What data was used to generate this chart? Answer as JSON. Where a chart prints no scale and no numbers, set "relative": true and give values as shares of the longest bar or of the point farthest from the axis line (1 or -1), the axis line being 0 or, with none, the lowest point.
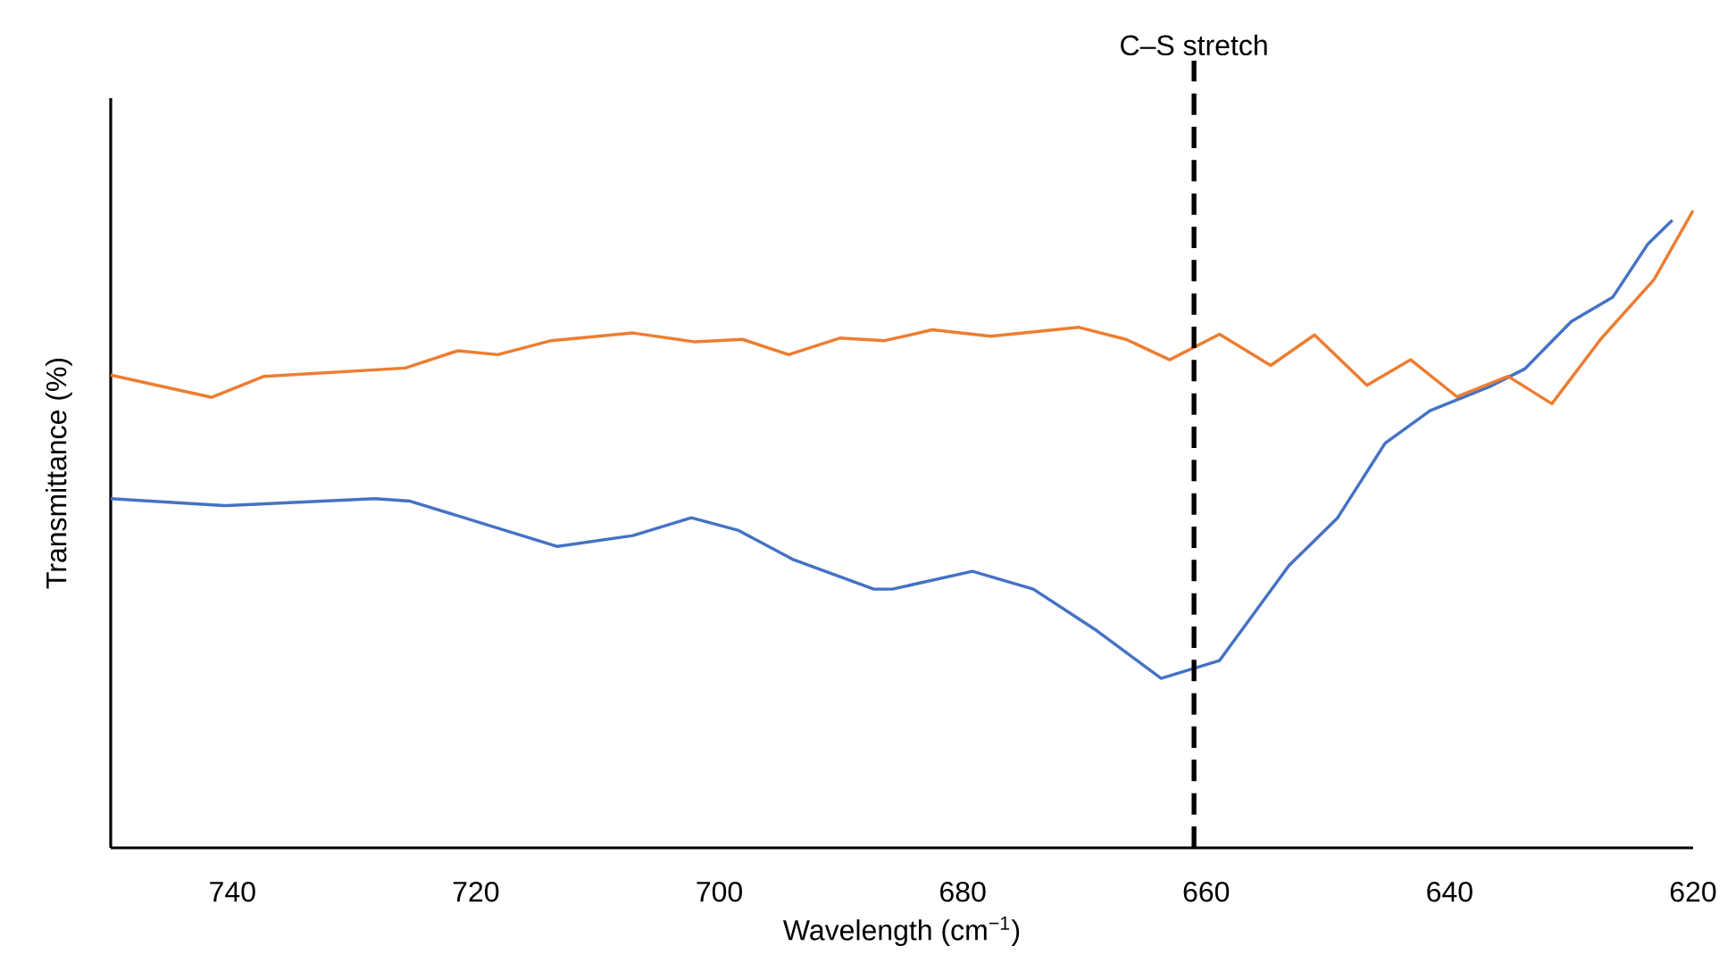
{
  "chart_data": {
    "type": "line",
    "relative": true,
    "xlabel": "Wavelength (cm$^{−1}$)",
    "ylabel": "Transmittance (%)",
    "xlim": [
      750,
      620
    ],
    "xticks": [
      740,
      720,
      700,
      680,
      660,
      640,
      620
    ],
    "marker": "none",
    "line_style": "solid",
    "ref_lines": [
      {
        "axis": "x",
        "value": 661,
        "label": "C–S stretch",
        "color": "#000000",
        "line_style": "dashed"
      }
    ],
    "series": [
      {
        "color": "#4472c4",
        "x": [
          750,
          740.7,
          728.3,
          725.4,
          713.3,
          707.1,
          702.3,
          698.4,
          694,
          687.3,
          685.8,
          679.2,
          674.2,
          669,
          663.7,
          658.9,
          653.2,
          649.2,
          645.3,
          641.6,
          636.7,
          633.8,
          630,
          626.6,
          623.7,
          621.7
        ],
        "values": [
          0.548,
          0.537,
          0.548,
          0.544,
          0.473,
          0.49,
          0.518,
          0.498,
          0.453,
          0.406,
          0.406,
          0.434,
          0.406,
          0.341,
          0.266,
          0.294,
          0.443,
          0.518,
          0.635,
          0.686,
          0.724,
          0.752,
          0.826,
          0.864,
          0.948,
          0.985
        ]
      },
      {
        "color": "#ed7d31",
        "x": [
          750,
          741.7,
          737.4,
          725.8,
          721.5,
          718.2,
          713.8,
          707.1,
          702,
          698.1,
          694.3,
          690.1,
          686.4,
          682.5,
          677.7,
          670.5,
          666.6,
          663,
          658.9,
          654.7,
          651.1,
          646.8,
          643.2,
          639.4,
          635.2,
          631.6,
          627.6,
          623.2,
          620
        ],
        "values": [
          0.742,
          0.707,
          0.74,
          0.753,
          0.78,
          0.774,
          0.796,
          0.808,
          0.794,
          0.798,
          0.774,
          0.8,
          0.796,
          0.813,
          0.803,
          0.817,
          0.798,
          0.766,
          0.806,
          0.757,
          0.805,
          0.726,
          0.766,
          0.708,
          0.74,
          0.697,
          0.798,
          0.892,
          1
        ]
      }
    ]
  }
}
